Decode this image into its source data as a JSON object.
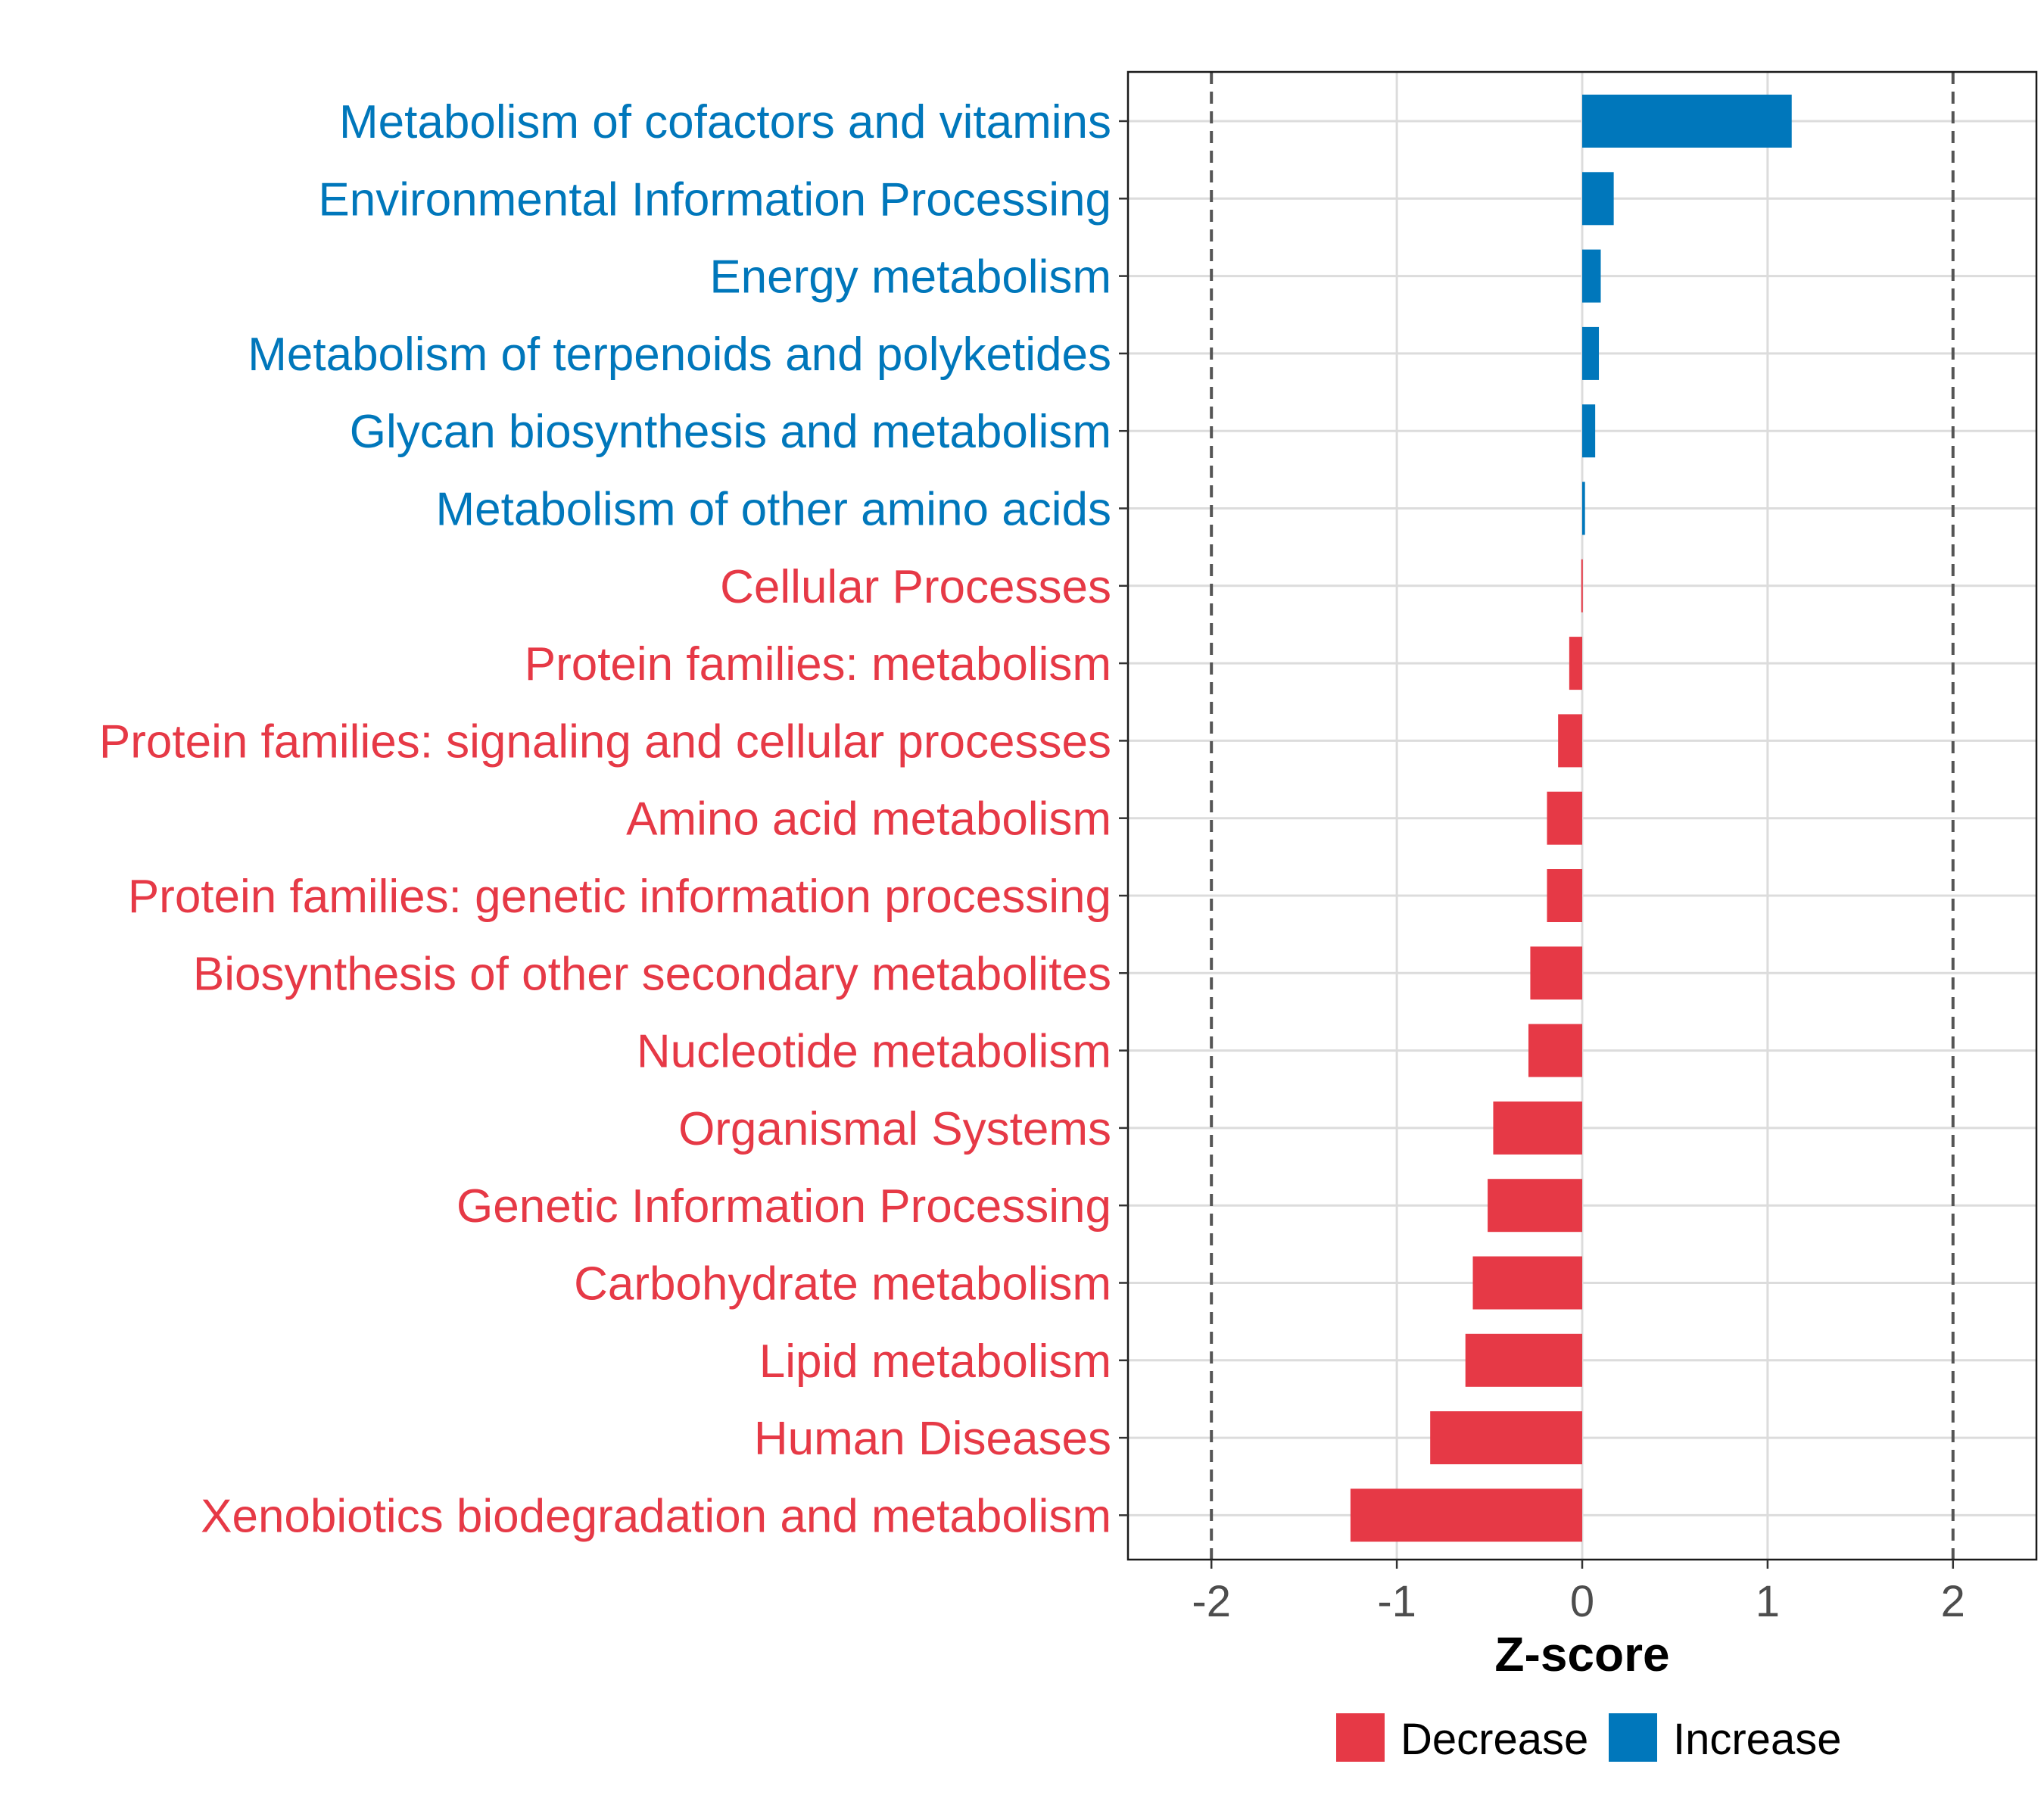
{
  "colors": {
    "increase": "#0077BB",
    "decrease": "#E63946",
    "grid": "#DCDCDC",
    "threshold": "#555555",
    "axis_text": "#4D4D4D",
    "axis_title": "#000000"
  },
  "chart_data": {
    "type": "bar",
    "orientation": "horizontal",
    "xlabel": "Z-score",
    "xlim": [
      -2.45,
      2.45
    ],
    "xticks": [
      -2,
      -1,
      0,
      1,
      2
    ],
    "xtick_labels": [
      "-2",
      "-1",
      "0",
      "1",
      "2"
    ],
    "threshold_lines": [
      -2,
      2
    ],
    "grid": true,
    "legend": {
      "placement": "bottom",
      "entries": [
        {
          "label": "Decrease",
          "color_key": "decrease"
        },
        {
          "label": "Increase",
          "color_key": "increase"
        }
      ]
    },
    "categories": [
      "Metabolism of cofactors and vitamins",
      "Environmental Information Processing",
      "Energy metabolism",
      "Metabolism of terpenoids and polyketides",
      "Glycan biosynthesis and metabolism",
      "Metabolism of other amino acids",
      "Cellular Processes",
      "Protein families: metabolism",
      "Protein families: signaling and cellular processes",
      "Amino acid metabolism",
      "Protein families: genetic information processing",
      "Biosynthesis of other secondary metabolites",
      "Nucleotide metabolism",
      "Organismal Systems",
      "Genetic Information Processing",
      "Carbohydrate metabolism",
      "Lipid metabolism",
      "Human Diseases",
      "Xenobiotics biodegradation and metabolism"
    ],
    "values": [
      1.13,
      0.17,
      0.1,
      0.09,
      0.07,
      0.015,
      -0.005,
      -0.07,
      -0.13,
      -0.19,
      -0.19,
      -0.28,
      -0.29,
      -0.48,
      -0.51,
      -0.59,
      -0.63,
      -0.82,
      -1.25
    ],
    "groups": [
      "Increase",
      "Increase",
      "Increase",
      "Increase",
      "Increase",
      "Increase",
      "Decrease",
      "Decrease",
      "Decrease",
      "Decrease",
      "Decrease",
      "Decrease",
      "Decrease",
      "Decrease",
      "Decrease",
      "Decrease",
      "Decrease",
      "Decrease",
      "Decrease"
    ]
  }
}
